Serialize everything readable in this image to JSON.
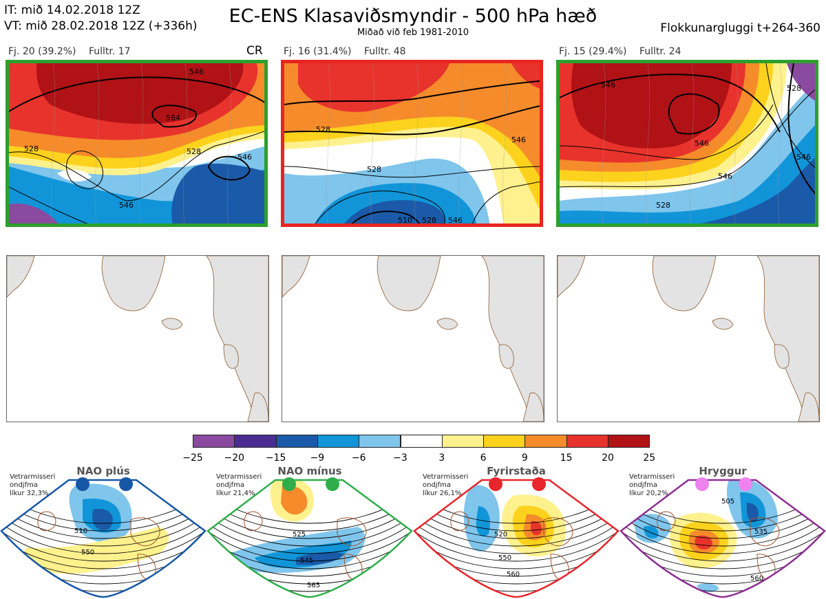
{
  "header": {
    "it_line": "IT: mið 14.02.2018 12Z",
    "vt_line": "VT: mið 28.02.2018 12Z  (+336h)",
    "title": "EC-ENS Klasaviðsmyndir - 500 hPa hæð",
    "subtitle": "Miðað við feb 1981-2010",
    "window": "Flokkunargluggi t+264-360"
  },
  "panels": [
    {
      "count": "Fj. 20 (39.2%)",
      "rep": "Fulltr. 17",
      "tag": "CR",
      "border_color": "#2ca02c",
      "contours": [
        "546",
        "564",
        "528",
        "546",
        "528",
        "546"
      ]
    },
    {
      "count": "Fj. 16 (31.4%)",
      "rep": "Fulltr. 48",
      "tag": "",
      "border_color": "#e8251f",
      "contours": [
        "528",
        "528",
        "546",
        "528",
        "510",
        "546"
      ]
    },
    {
      "count": "Fj. 15 (29.4%)",
      "rep": "Fulltr. 24",
      "tag": "",
      "border_color": "#2ca02c",
      "contours": [
        "546",
        "546",
        "528",
        "546",
        "528",
        "546"
      ]
    }
  ],
  "colorbar": {
    "ticks": [
      "−25",
      "−20",
      "−15",
      "−9",
      "−6",
      "−3",
      "3",
      "6",
      "9",
      "15",
      "20",
      "25"
    ],
    "colors": [
      "#8a4a9f",
      "#4b2d92",
      "#1a5aa8",
      "#1195d8",
      "#7fc5ec",
      "#ffffff",
      "#fff18d",
      "#fdd21d",
      "#f58b2b",
      "#e8332c",
      "#b01216"
    ]
  },
  "regimes": [
    {
      "title": "NAO plús",
      "note": [
        "Vetrarmisseri",
        "ondjfma",
        "líkur 32,3%"
      ],
      "dot_color": "#1657a6",
      "frame_color": "#1657a6",
      "labels": [
        "510",
        "550"
      ]
    },
    {
      "title": "NAO mínus",
      "note": [
        "Vetrarmisseri",
        "ondjfma",
        "líkur 21,4%"
      ],
      "dot_color": "#2fad4a",
      "frame_color": "#2fad4a",
      "labels": [
        "525",
        "545",
        "565"
      ]
    },
    {
      "title": "Fyrirstaða",
      "note": [
        "Vetrarmisseri",
        "ondjfma",
        "líkur 26,1%"
      ],
      "dot_color": "#e8252a",
      "frame_color": "#e8252a",
      "labels": [
        "520",
        "550",
        "560"
      ]
    },
    {
      "title": "Hryggur",
      "note": [
        "Vetrarmisseri",
        "ondjfma",
        "líkur 20,2%"
      ],
      "dot_color": "#ee82ee",
      "frame_color": "#8e2d94",
      "labels": [
        "505",
        "535",
        "560"
      ]
    }
  ]
}
